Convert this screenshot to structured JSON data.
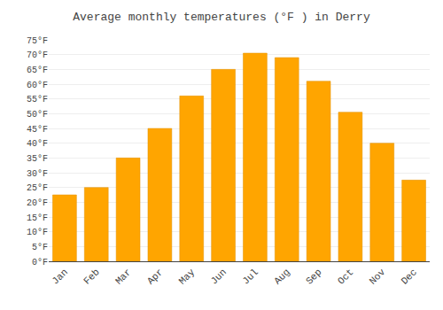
{
  "chart_data": {
    "type": "bar",
    "title": "Average monthly temperatures (°F ) in Derry",
    "categories": [
      "Jan",
      "Feb",
      "Mar",
      "Apr",
      "May",
      "Jun",
      "Jul",
      "Aug",
      "Sep",
      "Oct",
      "Nov",
      "Dec"
    ],
    "values": [
      22.5,
      25,
      35,
      45,
      56,
      65,
      70.5,
      69,
      61,
      50.5,
      40,
      27.5
    ],
    "color": "#FFA500",
    "ylim": [
      0,
      75
    ],
    "yticks": [
      {
        "value": 0,
        "label": "0°F"
      },
      {
        "value": 5,
        "label": "5°F"
      },
      {
        "value": 10,
        "label": "10°F"
      },
      {
        "value": 15,
        "label": "15°F"
      },
      {
        "value": 20,
        "label": "20°F"
      },
      {
        "value": 25,
        "label": "25°F"
      },
      {
        "value": 30,
        "label": "30°F"
      },
      {
        "value": 35,
        "label": "35°F"
      },
      {
        "value": 40,
        "label": "40°F"
      },
      {
        "value": 45,
        "label": "45°F"
      },
      {
        "value": 50,
        "label": "50°F"
      },
      {
        "value": 55,
        "label": "55°F"
      },
      {
        "value": 60,
        "label": "60°F"
      },
      {
        "value": 65,
        "label": "65°F"
      },
      {
        "value": 70,
        "label": "70°F"
      },
      {
        "value": 75,
        "label": "75°F"
      }
    ],
    "grid": true
  }
}
